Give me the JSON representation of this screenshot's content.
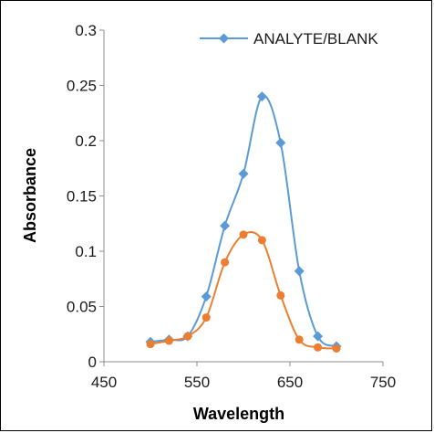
{
  "chart_data": {
    "type": "line",
    "title": "",
    "xlabel": "Wavelength",
    "ylabel": "Absorbance",
    "xlim": [
      450,
      750
    ],
    "ylim": [
      0,
      0.3
    ],
    "x_ticks": [
      "450",
      "550",
      "650",
      "750"
    ],
    "y_ticks": [
      "0",
      "0.05",
      "0.1",
      "0.15",
      "0.2",
      "0.25",
      "0.3"
    ],
    "grid": false,
    "legend": "top-right",
    "series": [
      {
        "name": "ANALYTE/BLANK",
        "color": "#5b9bd5",
        "marker": "diamond",
        "x": [
          500,
          520,
          540,
          560,
          580,
          600,
          620,
          640,
          660,
          680,
          700
        ],
        "y": [
          0.018,
          0.02,
          0.023,
          0.059,
          0.123,
          0.17,
          0.24,
          0.198,
          0.082,
          0.023,
          0.014
        ]
      },
      {
        "color": "#ed7d31",
        "marker": "circle",
        "x": [
          500,
          520,
          540,
          560,
          580,
          600,
          620,
          640,
          660,
          680,
          700
        ],
        "y": [
          0.016,
          0.019,
          0.023,
          0.04,
          0.09,
          0.115,
          0.11,
          0.06,
          0.02,
          0.013,
          0.012
        ]
      }
    ]
  }
}
